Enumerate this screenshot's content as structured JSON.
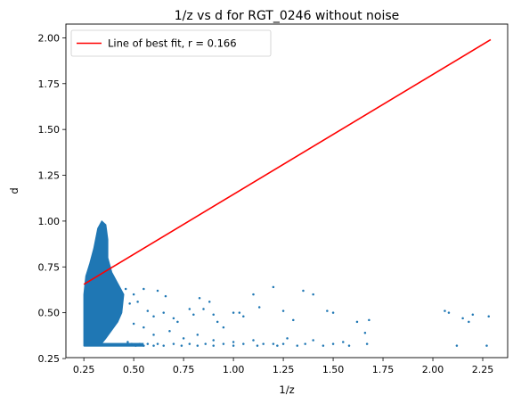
{
  "chart_data": {
    "type": "scatter",
    "title": "1/z vs d for RGT_0246 without noise",
    "xlabel": "1/z",
    "ylabel": "d",
    "xlim": [
      0.16,
      2.375
    ],
    "ylim": [
      0.255,
      2.075
    ],
    "xticks": [
      "0.25",
      "0.50",
      "0.75",
      "1.00",
      "1.25",
      "1.50",
      "1.75",
      "2.00",
      "2.25"
    ],
    "yticks": [
      "0.25",
      "0.50",
      "0.75",
      "1.00",
      "1.25",
      "1.50",
      "1.75",
      "2.00"
    ],
    "grid": false,
    "legend": {
      "placement": "top-left",
      "entries": [
        "Line of best fit, r = 0.166"
      ]
    },
    "series": [
      {
        "type": "scatter",
        "color": "#1f77b4",
        "cluster": {
          "x_range": [
            0.25,
            0.45
          ],
          "y_range": [
            0.32,
            1.0
          ]
        },
        "points": [
          [
            0.46,
            0.63
          ],
          [
            0.48,
            0.55
          ],
          [
            0.5,
            0.6
          ],
          [
            0.52,
            0.56
          ],
          [
            0.55,
            0.63
          ],
          [
            0.62,
            0.62
          ],
          [
            0.66,
            0.59
          ],
          [
            0.57,
            0.51
          ],
          [
            0.6,
            0.48
          ],
          [
            0.65,
            0.5
          ],
          [
            0.7,
            0.47
          ],
          [
            0.72,
            0.45
          ],
          [
            0.78,
            0.52
          ],
          [
            0.8,
            0.49
          ],
          [
            0.83,
            0.58
          ],
          [
            0.85,
            0.52
          ],
          [
            0.88,
            0.56
          ],
          [
            0.9,
            0.49
          ],
          [
            0.92,
            0.45
          ],
          [
            0.95,
            0.42
          ],
          [
            1.0,
            0.5
          ],
          [
            1.03,
            0.5
          ],
          [
            1.05,
            0.48
          ],
          [
            1.1,
            0.6
          ],
          [
            1.13,
            0.53
          ],
          [
            1.2,
            0.64
          ],
          [
            1.25,
            0.51
          ],
          [
            1.3,
            0.46
          ],
          [
            1.35,
            0.62
          ],
          [
            1.4,
            0.6
          ],
          [
            1.47,
            0.51
          ],
          [
            1.5,
            0.5
          ],
          [
            1.62,
            0.45
          ],
          [
            1.66,
            0.39
          ],
          [
            1.68,
            0.46
          ],
          [
            2.06,
            0.51
          ],
          [
            2.08,
            0.5
          ],
          [
            2.15,
            0.47
          ],
          [
            2.18,
            0.45
          ],
          [
            2.2,
            0.49
          ],
          [
            2.28,
            0.48
          ],
          [
            0.5,
            0.44
          ],
          [
            0.55,
            0.42
          ],
          [
            0.6,
            0.38
          ],
          [
            0.68,
            0.4
          ],
          [
            0.75,
            0.36
          ],
          [
            0.82,
            0.38
          ],
          [
            0.9,
            0.35
          ],
          [
            1.0,
            0.34
          ],
          [
            1.1,
            0.35
          ],
          [
            1.2,
            0.33
          ],
          [
            1.27,
            0.36
          ],
          [
            1.4,
            0.35
          ],
          [
            1.55,
            0.34
          ],
          [
            1.67,
            0.33
          ],
          [
            0.47,
            0.34
          ],
          [
            0.49,
            0.33
          ],
          [
            0.51,
            0.32
          ],
          [
            0.53,
            0.33
          ],
          [
            0.55,
            0.32
          ],
          [
            0.57,
            0.33
          ],
          [
            0.6,
            0.32
          ],
          [
            0.62,
            0.33
          ],
          [
            0.65,
            0.32
          ],
          [
            0.7,
            0.33
          ],
          [
            0.74,
            0.32
          ],
          [
            0.78,
            0.33
          ],
          [
            0.82,
            0.32
          ],
          [
            0.86,
            0.33
          ],
          [
            0.9,
            0.32
          ],
          [
            0.95,
            0.33
          ],
          [
            1.0,
            0.32
          ],
          [
            1.05,
            0.33
          ],
          [
            1.12,
            0.32
          ],
          [
            1.15,
            0.33
          ],
          [
            1.22,
            0.32
          ],
          [
            1.25,
            0.33
          ],
          [
            1.32,
            0.32
          ],
          [
            1.36,
            0.33
          ],
          [
            1.45,
            0.32
          ],
          [
            1.5,
            0.33
          ],
          [
            1.58,
            0.32
          ],
          [
            2.12,
            0.32
          ],
          [
            2.27,
            0.32
          ]
        ]
      },
      {
        "type": "line",
        "name": "Line of best fit, r = 0.166",
        "color": "#ff0000",
        "x": [
          0.25,
          2.29
        ],
        "y": [
          0.655,
          1.99
        ]
      }
    ]
  }
}
